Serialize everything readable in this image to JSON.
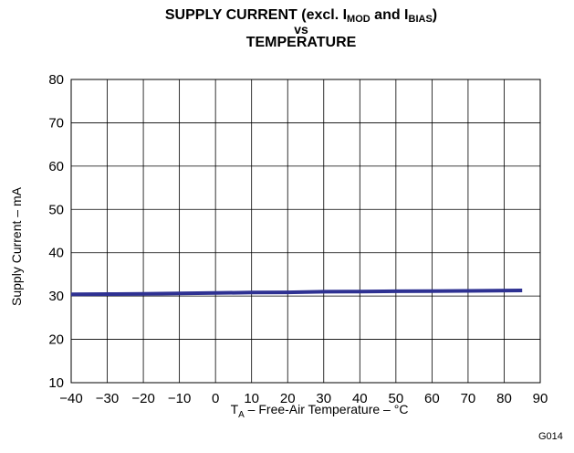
{
  "chart_data": {
    "type": "line",
    "title": {
      "line1_prefix": "SUPPLY CURRENT (excl. I",
      "mod_sub": "MOD",
      "line1_mid": " and I",
      "bias_sub": "BIAS",
      "line1_suffix": ")",
      "line2": "vs",
      "line3": "TEMPERATURE"
    },
    "xlabel": {
      "prefix": "T",
      "sub": "A",
      "suffix": " – Free-Air Temperature – °C"
    },
    "ylabel": "Supply Current – mA",
    "xlim": [
      -40,
      90
    ],
    "ylim": [
      10,
      80
    ],
    "x_ticks": [
      -40,
      -30,
      -20,
      -10,
      0,
      10,
      20,
      30,
      40,
      50,
      60,
      70,
      80,
      90
    ],
    "x_tick_labels": [
      "−40",
      "−30",
      "−20",
      "−10",
      "0",
      "10",
      "20",
      "30",
      "40",
      "50",
      "60",
      "70",
      "80",
      "90"
    ],
    "y_ticks": [
      10,
      20,
      30,
      40,
      50,
      60,
      70,
      80
    ],
    "grid": true,
    "series": [
      {
        "color": "#2e3192",
        "x": [
          -40,
          -30,
          -20,
          -10,
          0,
          10,
          20,
          30,
          40,
          50,
          60,
          70,
          85
        ],
        "y": [
          30.4,
          30.45,
          30.5,
          30.6,
          30.7,
          30.8,
          30.85,
          31.0,
          31.05,
          31.1,
          31.15,
          31.2,
          31.3
        ]
      }
    ]
  },
  "figure_code": "G014"
}
